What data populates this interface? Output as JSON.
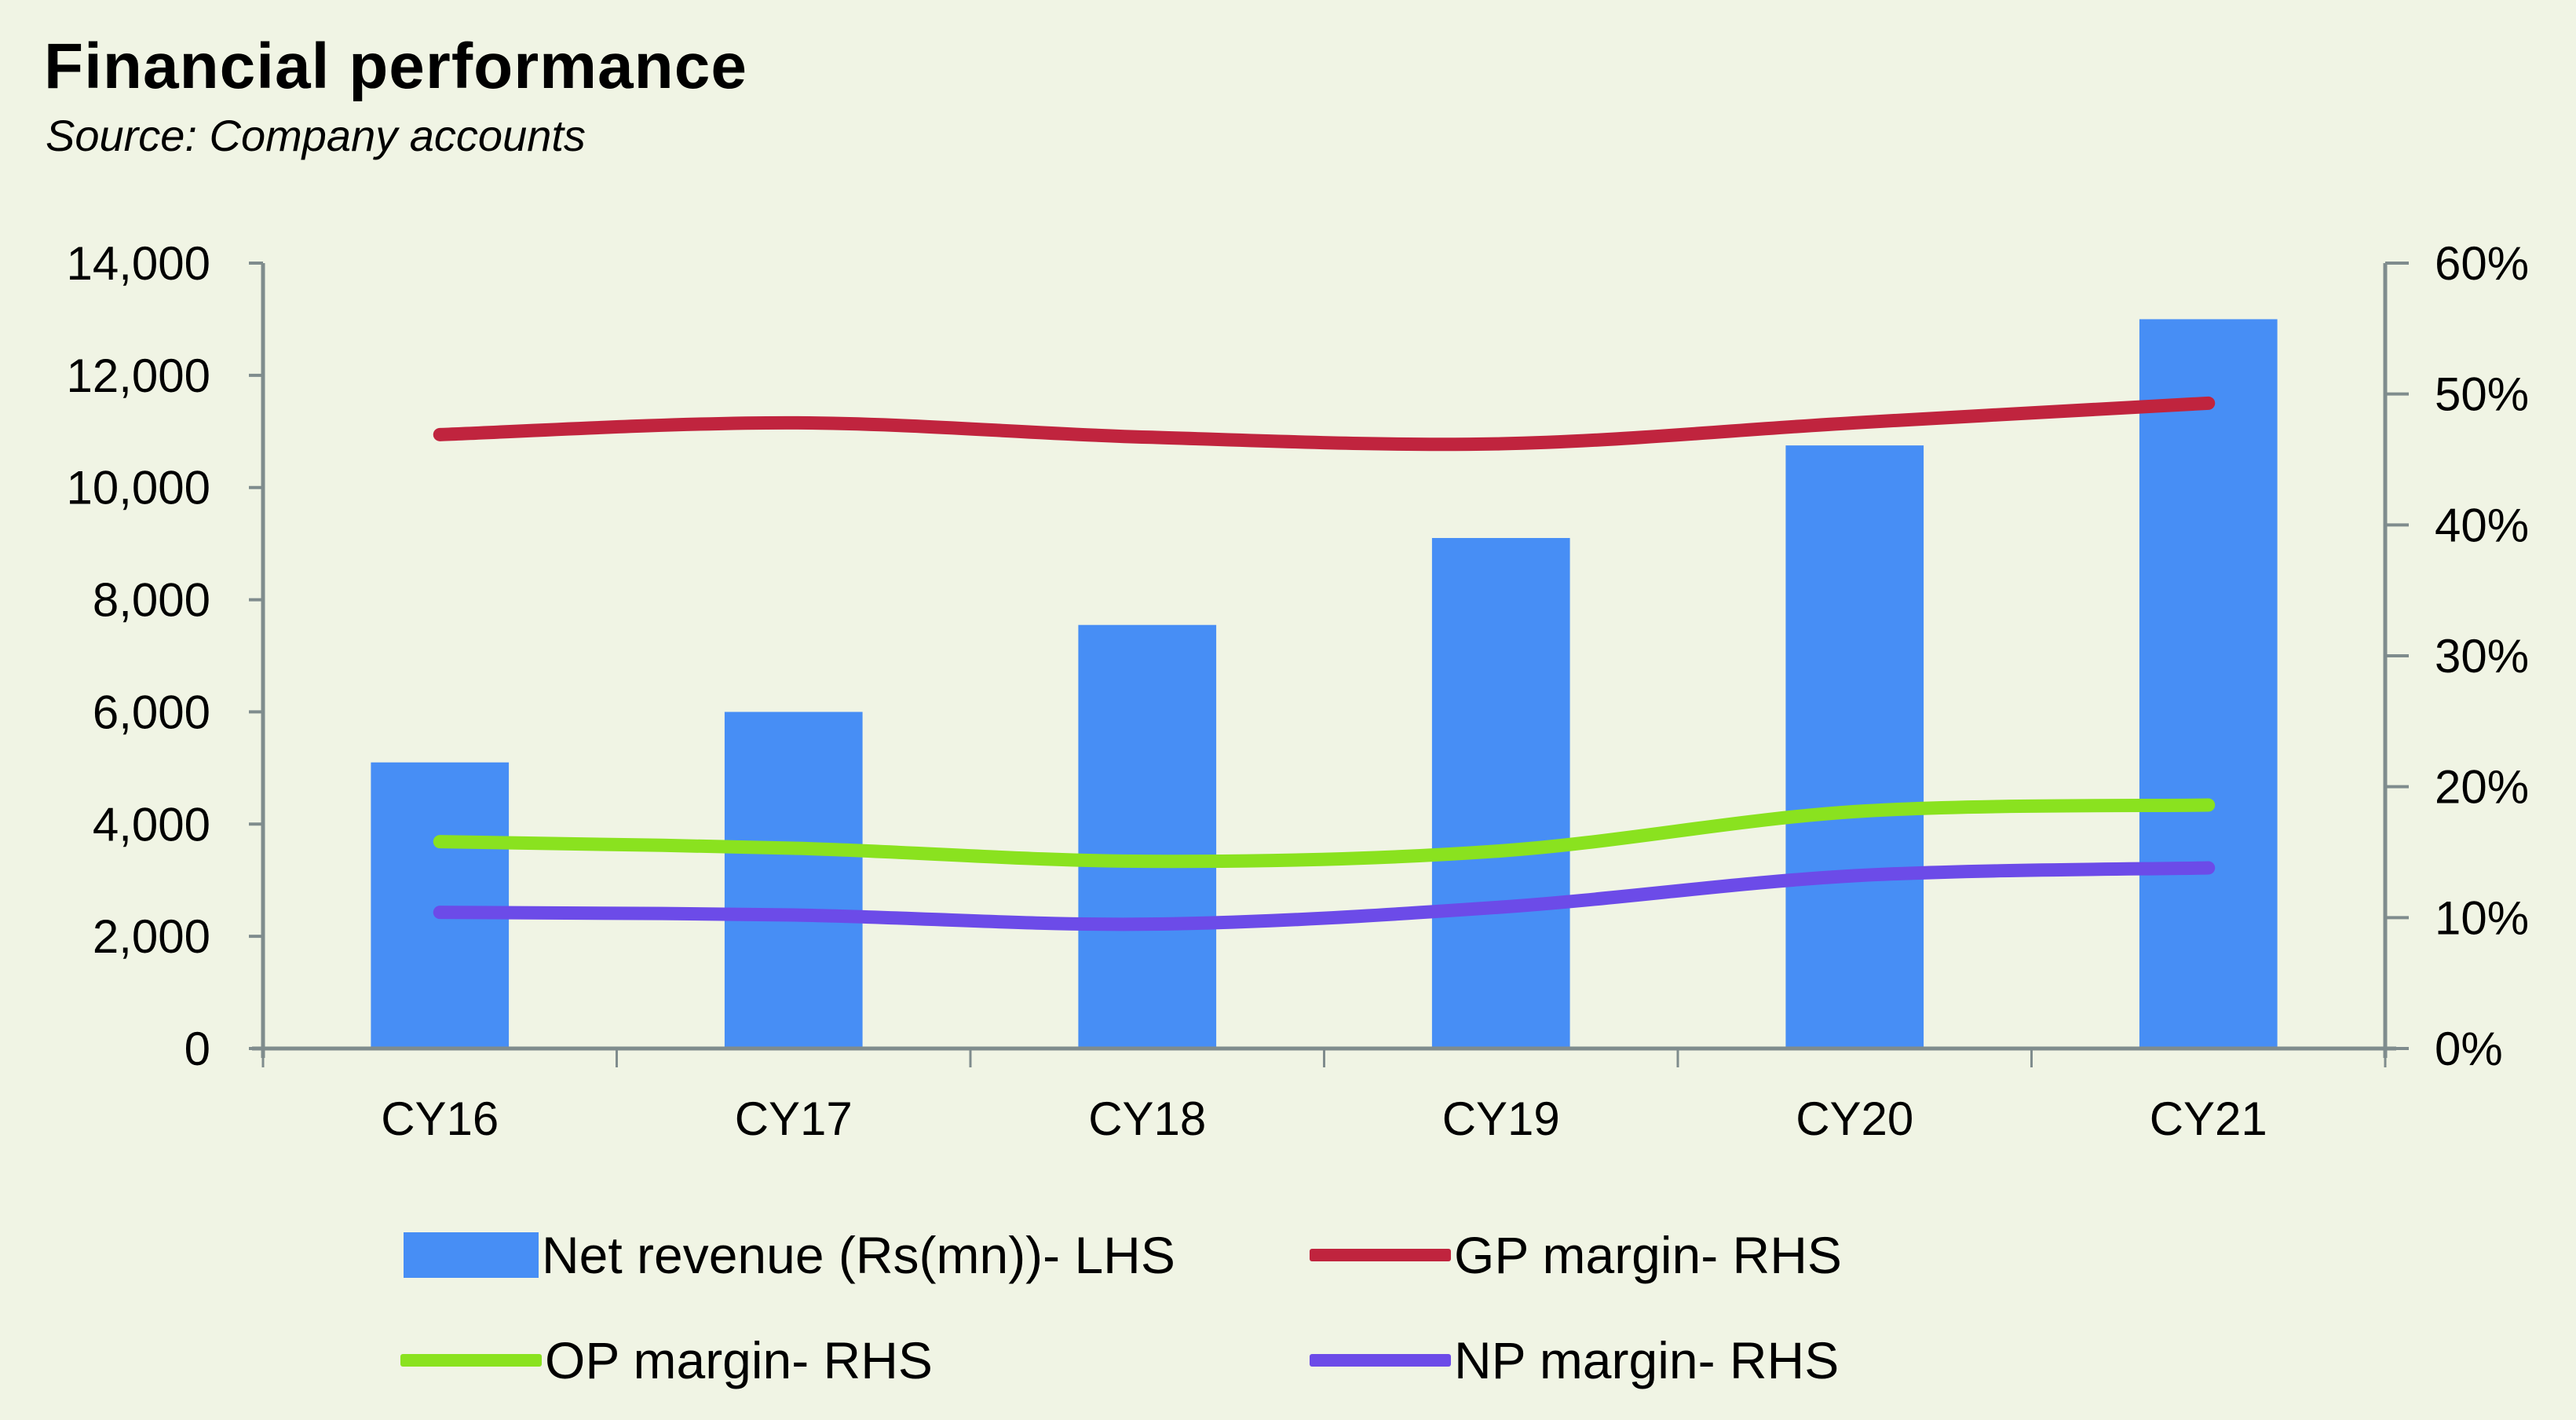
{
  "title": "Financial performance",
  "subtitle": "Source: Company accounts",
  "colors": {
    "background": "#f0f4e4",
    "bar": "#478ef5",
    "gp": "#c0243e",
    "op": "#8ae21f",
    "np": "#6c4be8",
    "axis": "#7f8c8d"
  },
  "chart_data": {
    "type": "bar+line",
    "title": "Financial performance",
    "subtitle": "Source: Company accounts",
    "categories": [
      "CY16",
      "CY17",
      "CY18",
      "CY19",
      "CY20",
      "CY21"
    ],
    "left_axis": {
      "ylim": [
        0,
        14000
      ],
      "ticks": [
        0,
        2000,
        4000,
        6000,
        8000,
        10000,
        12000,
        14000
      ],
      "tick_labels": [
        "0",
        "2,000",
        "4,000",
        "6,000",
        "8,000",
        "10,000",
        "12,000",
        "14,000"
      ]
    },
    "right_axis": {
      "ylim": [
        0,
        60
      ],
      "ticks": [
        0,
        10,
        20,
        30,
        40,
        50,
        60
      ],
      "tick_labels": [
        "0%",
        "10%",
        "20%",
        "30%",
        "40%",
        "50%",
        "60%"
      ]
    },
    "series": [
      {
        "name": "Net revenue (Rs(mn))- LHS",
        "type": "bar",
        "axis": "left",
        "color": "#478ef5",
        "values": [
          5100,
          6000,
          7550,
          9100,
          10750,
          13000
        ]
      },
      {
        "name": "GP margin- RHS",
        "type": "line",
        "axis": "right",
        "color": "#c0243e",
        "values": [
          46.9,
          47.8,
          46.7,
          46.2,
          47.8,
          49.3
        ]
      },
      {
        "name": "OP margin- RHS",
        "type": "line",
        "axis": "right",
        "color": "#8ae21f",
        "values": [
          15.8,
          15.3,
          14.3,
          15.1,
          18.1,
          18.6
        ]
      },
      {
        "name": "NP margin- RHS",
        "type": "line",
        "axis": "right",
        "color": "#6c4be8",
        "values": [
          10.4,
          10.2,
          9.5,
          10.8,
          13.2,
          13.8
        ]
      }
    ],
    "legend": "bottom",
    "grid": false
  }
}
